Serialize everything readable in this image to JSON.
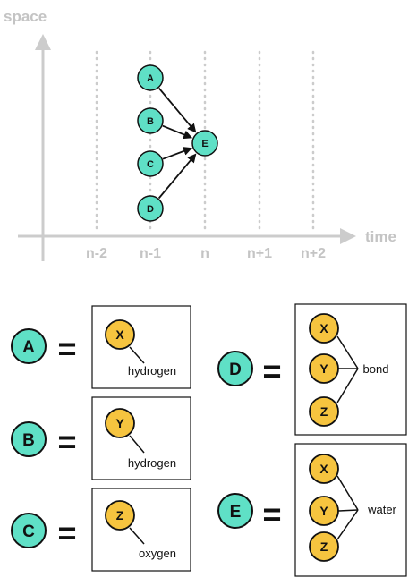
{
  "colors": {
    "axis": "#cccccc",
    "axis_text": "#c4c4c4",
    "node_fill": "#5fe0c6",
    "atom_fill": "#f6c43f",
    "stroke": "#111111"
  },
  "timeline": {
    "y_axis_label": "space",
    "x_axis_label": "time",
    "ticks": [
      "n-2",
      "n-1",
      "n",
      "n+1",
      "n+2"
    ],
    "nodes": [
      {
        "id": "A",
        "label": "A"
      },
      {
        "id": "B",
        "label": "B"
      },
      {
        "id": "C",
        "label": "C"
      },
      {
        "id": "D",
        "label": "D"
      },
      {
        "id": "E",
        "label": "E"
      }
    ],
    "edges": [
      {
        "from": "A",
        "to": "E"
      },
      {
        "from": "B",
        "to": "E"
      },
      {
        "from": "C",
        "to": "E"
      },
      {
        "from": "D",
        "to": "E"
      }
    ]
  },
  "legend": [
    {
      "node": "A",
      "equals": "=",
      "atoms": [
        "X"
      ],
      "caption": "hydrogen"
    },
    {
      "node": "B",
      "equals": "=",
      "atoms": [
        "Y"
      ],
      "caption": "hydrogen"
    },
    {
      "node": "C",
      "equals": "=",
      "atoms": [
        "Z"
      ],
      "caption": "oxygen"
    },
    {
      "node": "D",
      "equals": "=",
      "atoms": [
        "X",
        "Y",
        "Z"
      ],
      "caption": "bond"
    },
    {
      "node": "E",
      "equals": "=",
      "atoms": [
        "X",
        "Y",
        "Z"
      ],
      "caption": "water"
    }
  ]
}
